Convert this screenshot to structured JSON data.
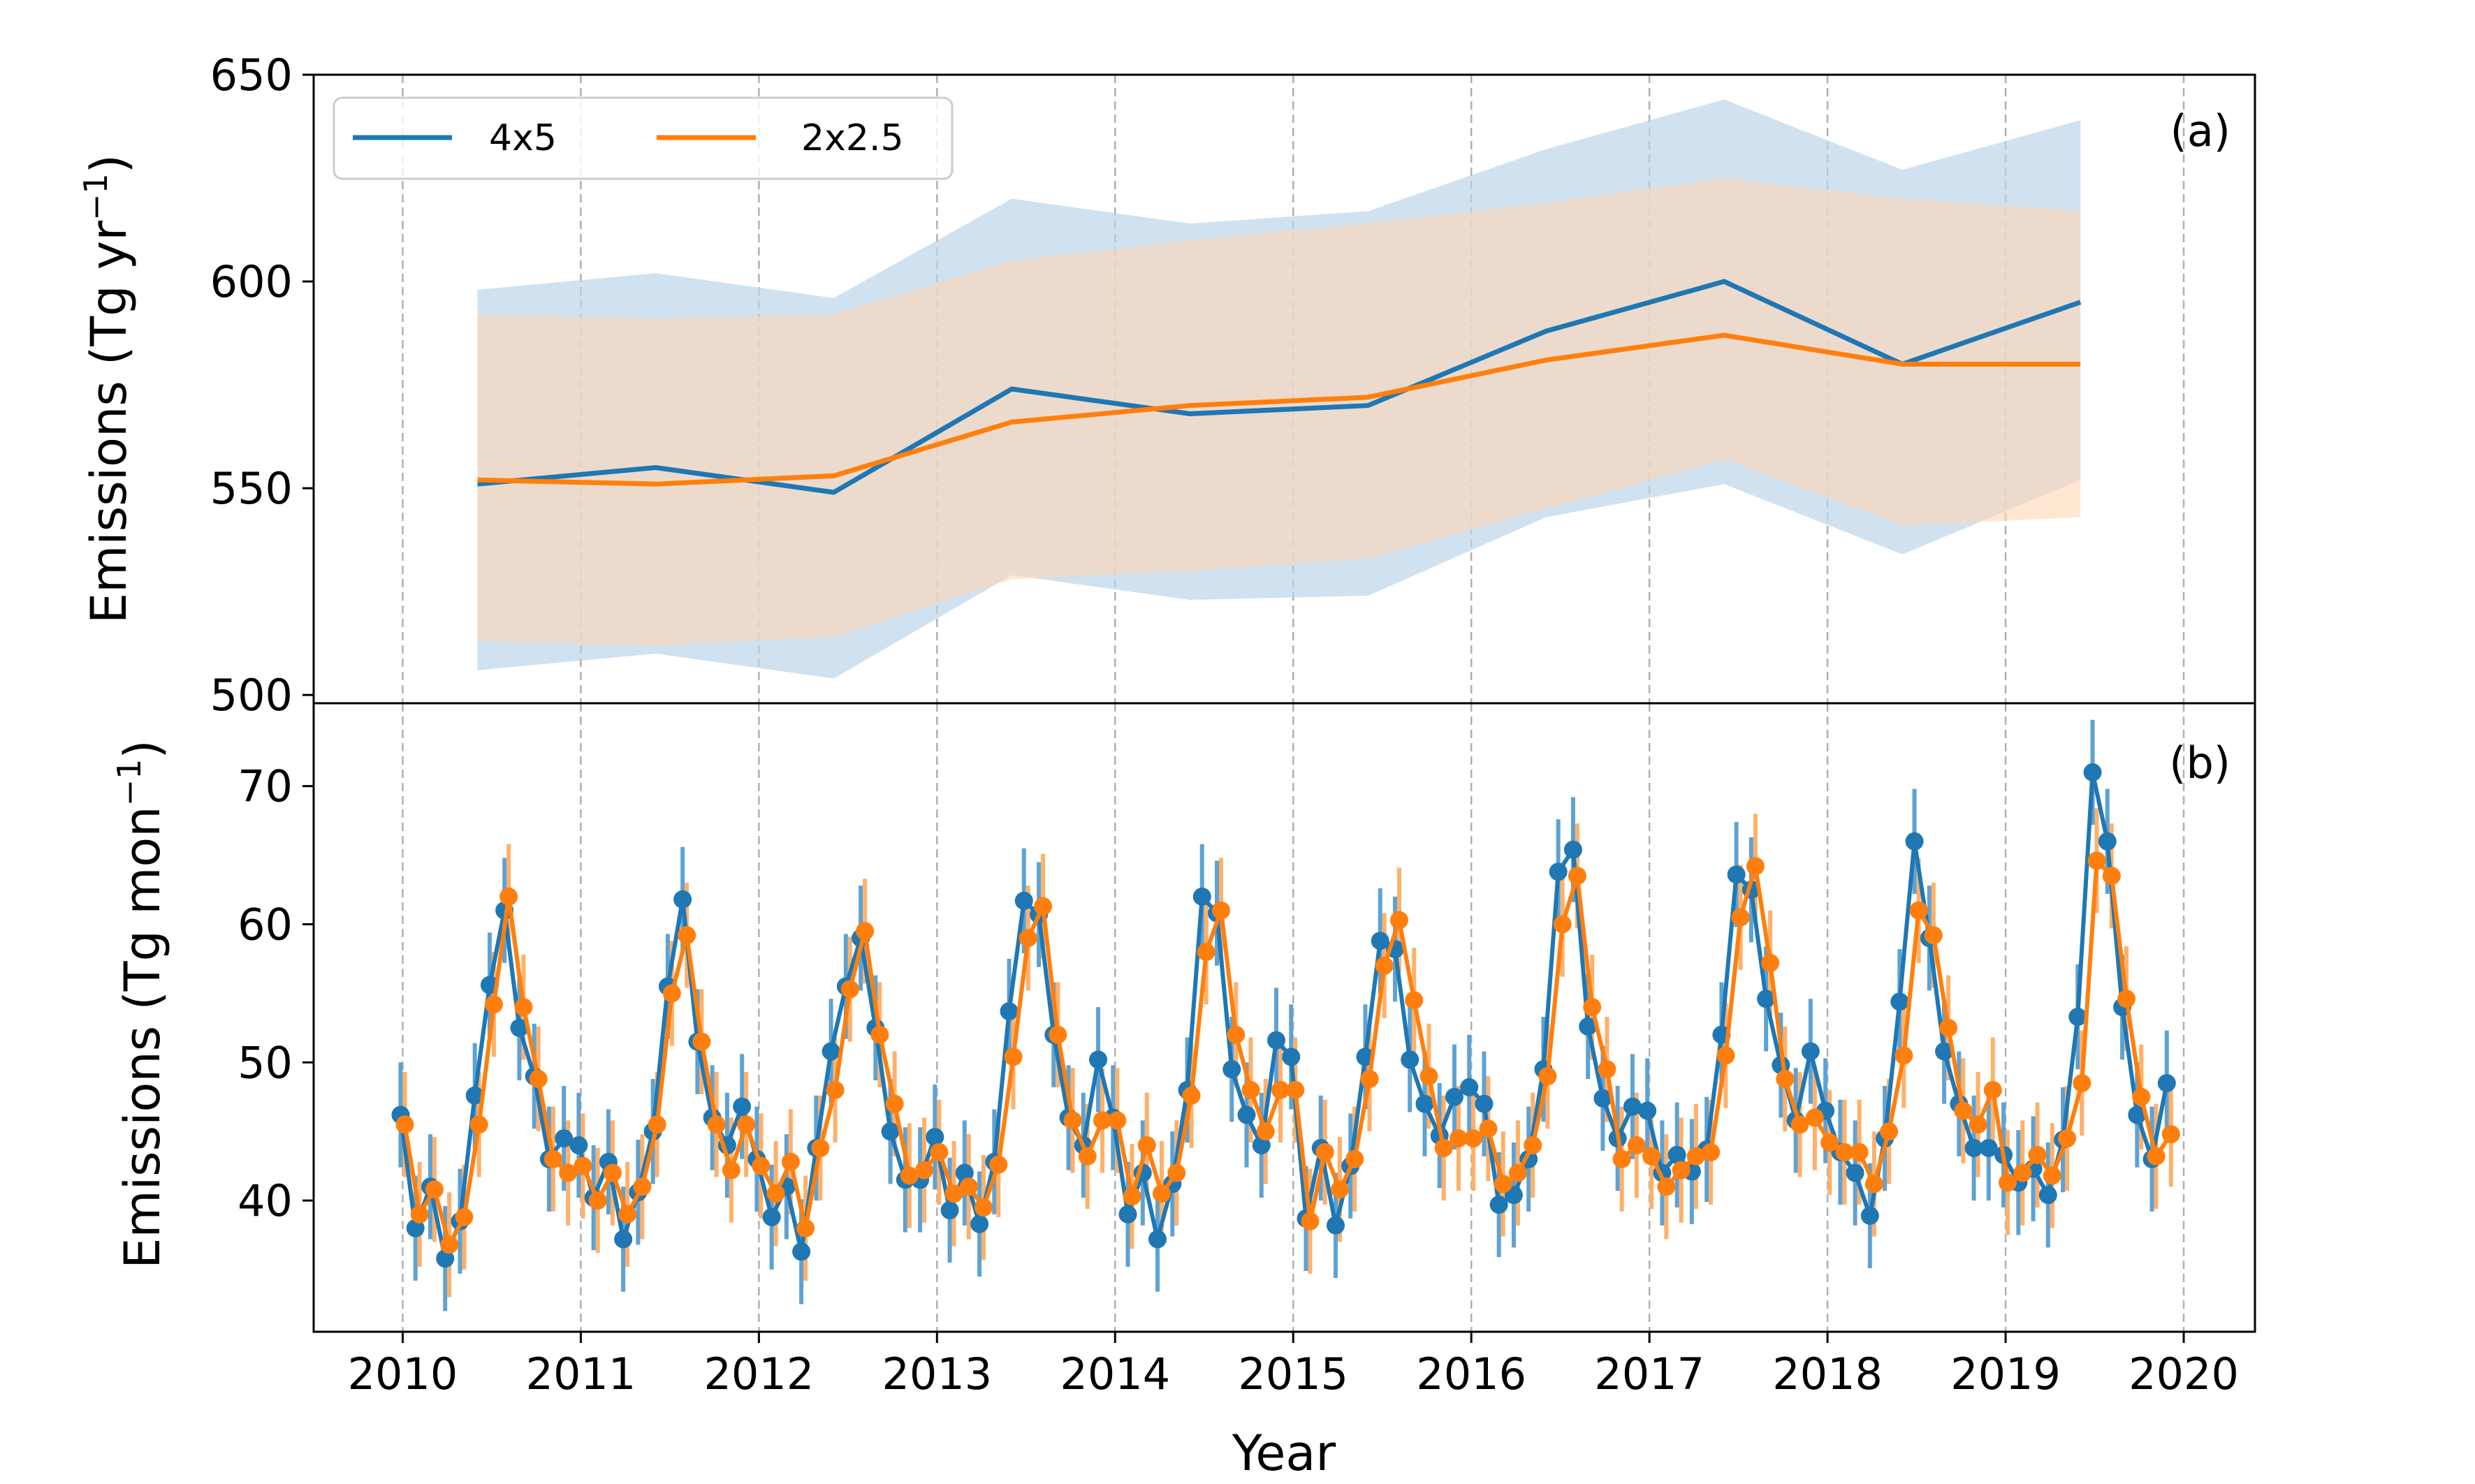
{
  "figure": {
    "xlabel": "Year",
    "x_tick_labels": [
      "2010",
      "2011",
      "2012",
      "2013",
      "2014",
      "2015",
      "2016",
      "2017",
      "2018",
      "2019",
      "2020"
    ]
  },
  "colors": {
    "series_4x5": "#1f77b4",
    "series_2x2_5": "#ff7f0e",
    "band_4x5": "#bcd4ea",
    "band_2x2_5": "#ffd7b4",
    "grid": "#b0b0b0"
  },
  "chart_data": [
    {
      "type": "line",
      "panel_label": "(a)",
      "ylabel": "Emissions (Tg yr",
      "ylabel_sup": "−1",
      "ylabel_end": ")",
      "ylim": [
        498,
        650
      ],
      "yticks": [
        500,
        550,
        600,
        650
      ],
      "xlim": [
        2009.5,
        2020.4
      ],
      "grid": "vertical dashed at years",
      "legend": {
        "placement": "top-left",
        "entries": [
          "4x5",
          "2x2.5"
        ]
      },
      "x": [
        2010.42,
        2011.42,
        2012.42,
        2013.42,
        2014.42,
        2015.42,
        2016.42,
        2017.42,
        2018.42,
        2019.42
      ],
      "series": [
        {
          "name": "4x5",
          "values": [
            551,
            555,
            549,
            574,
            568,
            570,
            588,
            600,
            580,
            595
          ],
          "upper": [
            598,
            602,
            596,
            620,
            614,
            617,
            632,
            644,
            627,
            639
          ],
          "lower": [
            506,
            510,
            504,
            529,
            523,
            524,
            543,
            551,
            534,
            552
          ]
        },
        {
          "name": "2x2.5",
          "values": [
            552,
            551,
            553,
            566,
            570,
            572,
            581,
            587,
            580,
            580
          ],
          "upper": [
            592,
            591,
            592,
            605,
            610,
            614,
            619,
            625,
            620,
            617
          ],
          "lower": [
            513,
            512,
            514,
            528,
            530,
            533,
            545,
            557,
            541,
            543
          ]
        }
      ]
    },
    {
      "type": "line",
      "panel_label": "(b)",
      "ylabel": "Emissions (Tg mon",
      "ylabel_sup": "−1",
      "ylabel_end": ")",
      "ylim": [
        30.5,
        76
      ],
      "yticks": [
        40,
        50,
        60,
        70
      ],
      "xlim": [
        2009.5,
        2020.4
      ],
      "grid": "vertical dashed at years",
      "x_start": 2010.0,
      "x_step_months": 1,
      "series": [
        {
          "name": "4x5",
          "values": [
            46.2,
            38.0,
            41.0,
            35.8,
            38.5,
            47.6,
            55.6,
            61.0,
            52.5,
            49.0,
            43.0,
            44.5,
            44.0,
            40.2,
            42.8,
            37.2,
            40.6,
            45.0,
            55.5,
            61.8,
            51.5,
            46.0,
            44.0,
            46.8,
            43.0,
            38.8,
            41.0,
            36.3,
            43.8,
            50.8,
            55.5,
            59.0,
            52.5,
            45.0,
            41.5,
            41.5,
            44.6,
            39.3,
            42.0,
            38.3,
            42.8,
            53.7,
            61.7,
            60.7,
            52.0,
            46.0,
            44.0,
            50.2,
            46.0,
            39.0,
            42.0,
            37.2,
            41.2,
            48.0,
            62.0,
            60.8,
            49.5,
            46.2,
            44.0,
            51.6,
            50.4,
            38.7,
            43.8,
            38.2,
            42.5,
            50.4,
            58.8,
            58.2,
            50.2,
            47.0,
            44.7,
            47.5,
            48.2,
            47.0,
            39.7,
            40.4,
            43.0,
            49.5,
            63.8,
            65.4,
            52.6,
            47.4,
            44.5,
            46.8,
            46.5,
            42.0,
            43.3,
            42.1,
            43.7,
            52.0,
            63.6,
            62.5,
            54.6,
            49.8,
            45.8,
            50.8,
            46.5,
            43.5,
            42.0,
            38.9,
            44.5,
            54.4,
            66.0,
            59.0,
            50.8,
            47.0,
            43.8,
            43.8,
            43.3,
            41.3,
            42.3,
            40.4,
            44.4,
            53.3,
            71.0,
            66.0,
            54.0,
            46.2,
            43.0,
            48.5
          ]
        },
        {
          "name": "2x2.5",
          "values": [
            45.5,
            39.0,
            40.8,
            36.8,
            38.8,
            45.5,
            54.2,
            62.0,
            54.0,
            48.8,
            43.0,
            42.0,
            42.5,
            40.0,
            42.0,
            39.0,
            41.0,
            45.5,
            55.0,
            59.2,
            51.5,
            45.5,
            42.2,
            45.5,
            42.5,
            40.5,
            42.8,
            38.0,
            43.8,
            48.0,
            55.3,
            59.5,
            52.0,
            47.0,
            41.8,
            42.2,
            43.5,
            40.5,
            41.0,
            39.5,
            42.6,
            50.4,
            59.0,
            61.3,
            52.0,
            45.8,
            43.2,
            45.8,
            45.8,
            40.3,
            44.0,
            40.5,
            42.0,
            47.6,
            58.0,
            61.0,
            52.0,
            48.0,
            45.0,
            48.0,
            48.0,
            38.5,
            43.5,
            40.8,
            43.0,
            48.8,
            57.0,
            60.3,
            54.5,
            49.0,
            43.8,
            44.5,
            44.5,
            45.2,
            41.2,
            42.0,
            44.0,
            49.0,
            60.0,
            63.5,
            54.0,
            49.5,
            43.0,
            44.0,
            43.2,
            41.0,
            42.2,
            43.2,
            43.5,
            50.5,
            60.5,
            64.2,
            57.2,
            48.8,
            45.5,
            46.0,
            44.2,
            43.5,
            43.5,
            41.2,
            45.0,
            50.5,
            61.0,
            59.2,
            52.5,
            46.5,
            45.5,
            48.0,
            41.3,
            42.0,
            43.3,
            41.8,
            44.5,
            48.5,
            64.6,
            63.5,
            54.6,
            47.5,
            43.2,
            44.8
          ]
        }
      ]
    }
  ]
}
